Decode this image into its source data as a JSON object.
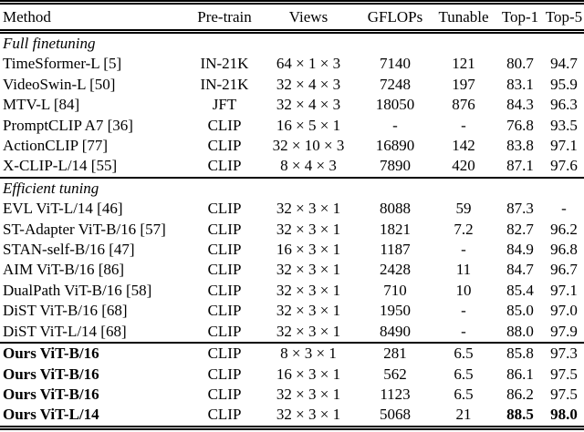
{
  "table": {
    "columns": [
      "Method",
      "Pre-train",
      "Views",
      "GFLOPs",
      "Tunable",
      "Top-1",
      "Top-5"
    ],
    "sections": [
      {
        "label": "Full finetuning",
        "rule_above": false,
        "rows": [
          {
            "method": "TimeSformer-L [5]",
            "pretrain": "IN-21K",
            "views": "64 × 1 × 3",
            "gflops": "7140",
            "tunable": "121",
            "top1": "80.7",
            "top5": "94.7"
          },
          {
            "method": "VideoSwin-L [50]",
            "pretrain": "IN-21K",
            "views": "32 × 4 × 3",
            "gflops": "7248",
            "tunable": "197",
            "top1": "83.1",
            "top5": "95.9"
          },
          {
            "method": "MTV-L [84]",
            "pretrain": "JFT",
            "views": "32 × 4 × 3",
            "gflops": "18050",
            "tunable": "876",
            "top1": "84.3",
            "top5": "96.3"
          },
          {
            "method": "PromptCLIP A7 [36]",
            "pretrain": "CLIP",
            "views": "16 × 5 × 1",
            "gflops": "-",
            "tunable": "-",
            "top1": "76.8",
            "top5": "93.5"
          },
          {
            "method": "ActionCLIP [77]",
            "pretrain": "CLIP",
            "views": "32 × 10 × 3",
            "gflops": "16890",
            "tunable": "142",
            "top1": "83.8",
            "top5": "97.1"
          },
          {
            "method": "X-CLIP-L/14 [55]",
            "pretrain": "CLIP",
            "views": "8 × 4 × 3",
            "gflops": "7890",
            "tunable": "420",
            "top1": "87.1",
            "top5": "97.6"
          }
        ]
      },
      {
        "label": "Efficient tuning",
        "rule_above": true,
        "rows": [
          {
            "method": "EVL ViT-L/14 [46]",
            "pretrain": "CLIP",
            "views": "32 × 3 × 1",
            "gflops": "8088",
            "tunable": "59",
            "top1": "87.3",
            "top5": "-"
          },
          {
            "method": "ST-Adapter ViT-B/16 [57]",
            "pretrain": "CLIP",
            "views": "32 × 3 × 1",
            "gflops": "1821",
            "tunable": "7.2",
            "top1": "82.7",
            "top5": "96.2"
          },
          {
            "method": "STAN-self-B/16 [47]",
            "pretrain": "CLIP",
            "views": "16 × 3 × 1",
            "gflops": "1187",
            "tunable": "-",
            "top1": "84.9",
            "top5": "96.8"
          },
          {
            "method": "AIM ViT-B/16 [86]",
            "pretrain": "CLIP",
            "views": "32 × 3 × 1",
            "gflops": "2428",
            "tunable": "11",
            "top1": "84.7",
            "top5": "96.7"
          },
          {
            "method": "DualPath ViT-B/16 [58]",
            "pretrain": "CLIP",
            "views": "32 × 3 × 1",
            "gflops": "710",
            "tunable": "10",
            "top1": "85.4",
            "top5": "97.1"
          },
          {
            "method": "DiST ViT-B/16 [68]",
            "pretrain": "CLIP",
            "views": "32 × 3 × 1",
            "gflops": "1950",
            "tunable": "-",
            "top1": "85.0",
            "top5": "97.0"
          },
          {
            "method": "DiST ViT-L/14 [68]",
            "pretrain": "CLIP",
            "views": "32 × 3 × 1",
            "gflops": "8490",
            "tunable": "-",
            "top1": "88.0",
            "top5": "97.9"
          }
        ]
      },
      {
        "label": "",
        "rule_above": true,
        "rows": [
          {
            "method": "Ours ViT-B/16",
            "method_bold": true,
            "pretrain": "CLIP",
            "views": "8 × 3 × 1",
            "gflops": "281",
            "tunable": "6.5",
            "top1": "85.8",
            "top5": "97.3"
          },
          {
            "method": "Ours ViT-B/16",
            "method_bold": true,
            "pretrain": "CLIP",
            "views": "16 × 3 × 1",
            "gflops": "562",
            "tunable": "6.5",
            "top1": "86.1",
            "top5": "97.5"
          },
          {
            "method": "Ours ViT-B/16",
            "method_bold": true,
            "pretrain": "CLIP",
            "views": "32 × 3 × 1",
            "gflops": "1123",
            "tunable": "6.5",
            "top1": "86.2",
            "top5": "97.5"
          },
          {
            "method": "Ours ViT-L/14",
            "method_bold": true,
            "pretrain": "CLIP",
            "views": "32 × 3 × 1",
            "gflops": "5068",
            "tunable": "21",
            "top1": "88.5",
            "top1_bold": true,
            "top5": "98.0",
            "top5_bold": true
          }
        ]
      }
    ]
  }
}
